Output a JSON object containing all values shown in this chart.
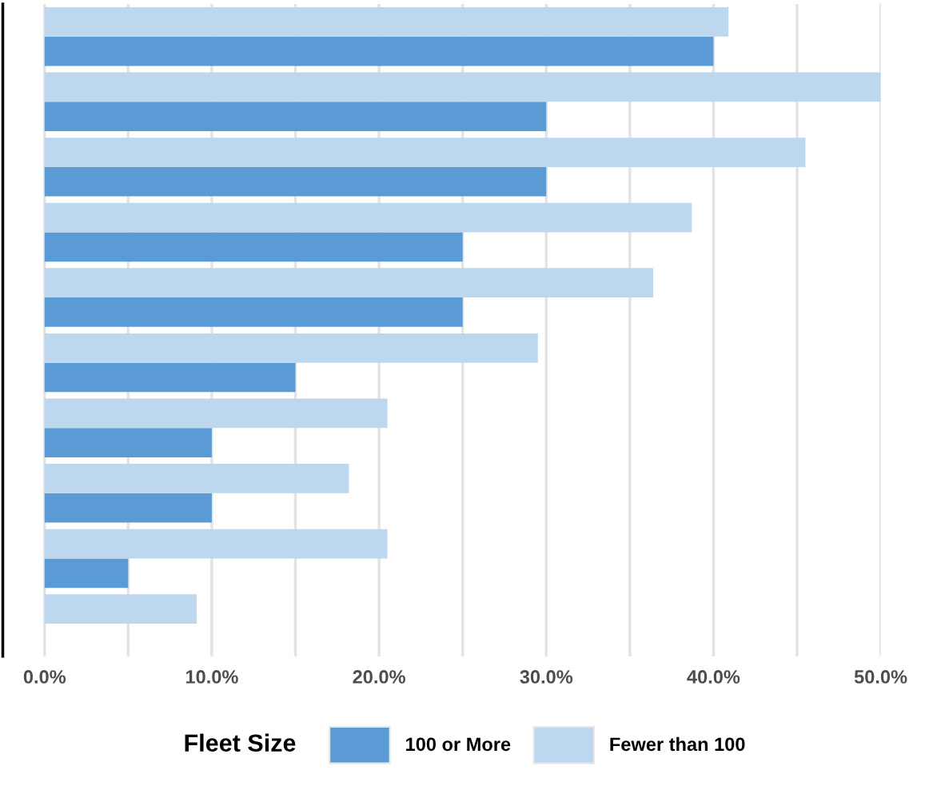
{
  "chart_data": {
    "type": "bar",
    "orientation": "horizontal",
    "categories": [
      null,
      null,
      null,
      null,
      null,
      null,
      null,
      null,
      null,
      null
    ],
    "series": [
      {
        "name": "100 or More",
        "color": "#5b9bd5",
        "values": [
          40,
          30,
          30,
          25,
          25,
          15,
          10,
          10,
          5,
          null
        ]
      },
      {
        "name": "Fewer than 100",
        "color": "#bdd7ee",
        "values": [
          40.9,
          50.0,
          45.5,
          38.7,
          36.4,
          29.5,
          20.5,
          18.2,
          20.5,
          9.1
        ]
      }
    ],
    "xlim": [
      -2.5,
      50
    ],
    "xticks": [
      {
        "value": 0,
        "label": "0.0%"
      },
      {
        "value": 5,
        "label": null
      },
      {
        "value": 10,
        "label": "10.0%"
      },
      {
        "value": 15,
        "label": null
      },
      {
        "value": 20,
        "label": "20.0%"
      },
      {
        "value": 25,
        "label": null
      },
      {
        "value": 30,
        "label": "30.0%"
      },
      {
        "value": 35,
        "label": null
      },
      {
        "value": 40,
        "label": "40.0%"
      },
      {
        "value": 45,
        "label": null
      },
      {
        "value": 50,
        "label": "50.0%"
      }
    ],
    "tick_labels": "x",
    "grid": "x",
    "legend": "bottom",
    "legend_title": "Fleet Size"
  }
}
